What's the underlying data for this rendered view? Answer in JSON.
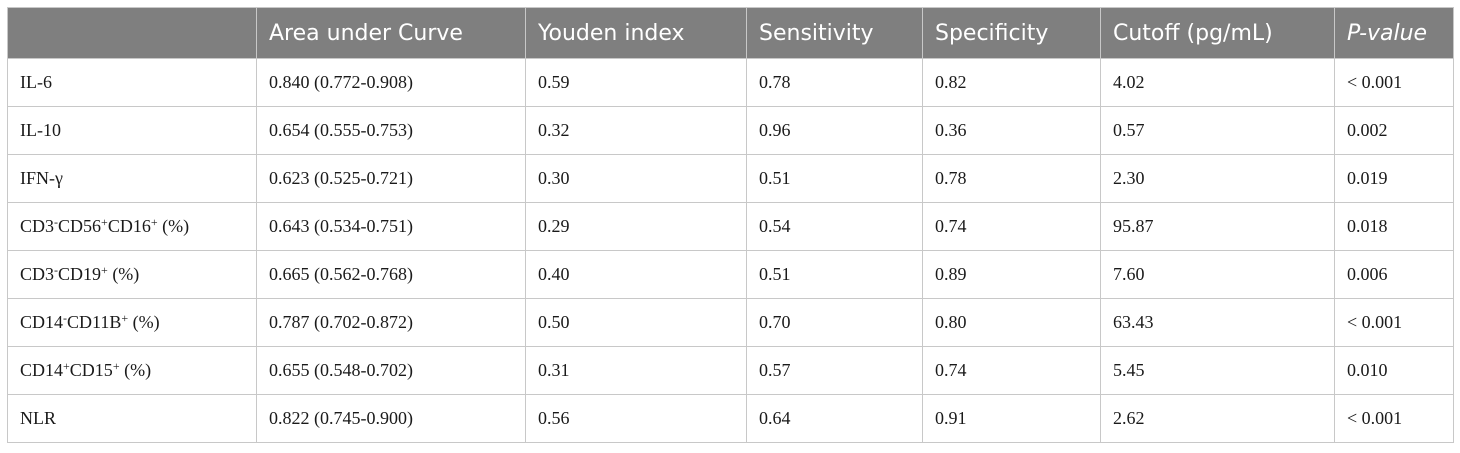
{
  "table": {
    "headers": [
      "",
      "Area under Curve",
      "Youden index",
      "Sensitivity",
      "Specificity",
      "Cutoff (pg/mL)",
      "P-value"
    ],
    "rows": [
      {
        "label": {
          "base": "IL-6"
        },
        "cells": [
          "0.840 (0.772-0.908)",
          "0.59",
          "0.78",
          "0.82",
          "4.02",
          "< 0.001"
        ]
      },
      {
        "label": {
          "base": "IL-10"
        },
        "cells": [
          "0.654 (0.555-0.753)",
          "0.32",
          "0.96",
          "0.36",
          "0.57",
          "0.002"
        ]
      },
      {
        "label": {
          "base": "IFN-γ"
        },
        "cells": [
          "0.623 (0.525-0.721)",
          "0.30",
          "0.51",
          "0.78",
          "2.30",
          "0.019"
        ]
      },
      {
        "label": {
          "p1": "CD3",
          "s1": "-",
          "p2": "CD56",
          "s2": "+",
          "p3": "CD16",
          "s3": "+",
          "suffix": " (%)"
        },
        "cells": [
          "0.643 (0.534-0.751)",
          "0.29",
          "0.54",
          "0.74",
          "95.87",
          "0.018"
        ]
      },
      {
        "label": {
          "p1": "CD3",
          "s1": "-",
          "p2": "CD19",
          "s2": "+",
          "suffix": " (%)"
        },
        "cells": [
          "0.665 (0.562-0.768)",
          "0.40",
          "0.51",
          "0.89",
          "7.60",
          "0.006"
        ]
      },
      {
        "label": {
          "p1": "CD14",
          "s1": "-",
          "p2": "CD11B",
          "s2": "+",
          "suffix": " (%)"
        },
        "cells": [
          "0.787 (0.702-0.872)",
          "0.50",
          "0.70",
          "0.80",
          "63.43",
          "< 0.001"
        ]
      },
      {
        "label": {
          "p1": "CD14",
          "s1": "+",
          "p2": "CD15",
          "s2": "+",
          "suffix": " (%)"
        },
        "cells": [
          "0.655 (0.548-0.702)",
          "0.31",
          "0.57",
          "0.74",
          "5.45",
          "0.010"
        ]
      },
      {
        "label": {
          "base": "NLR"
        },
        "cells": [
          "0.822 (0.745-0.900)",
          "0.56",
          "0.64",
          "0.91",
          "2.62",
          "< 0.001"
        ]
      }
    ]
  },
  "colors": {
    "header_bg": "#7f7f7f",
    "header_text": "#ffffff",
    "grid": "#c8c8c8"
  }
}
